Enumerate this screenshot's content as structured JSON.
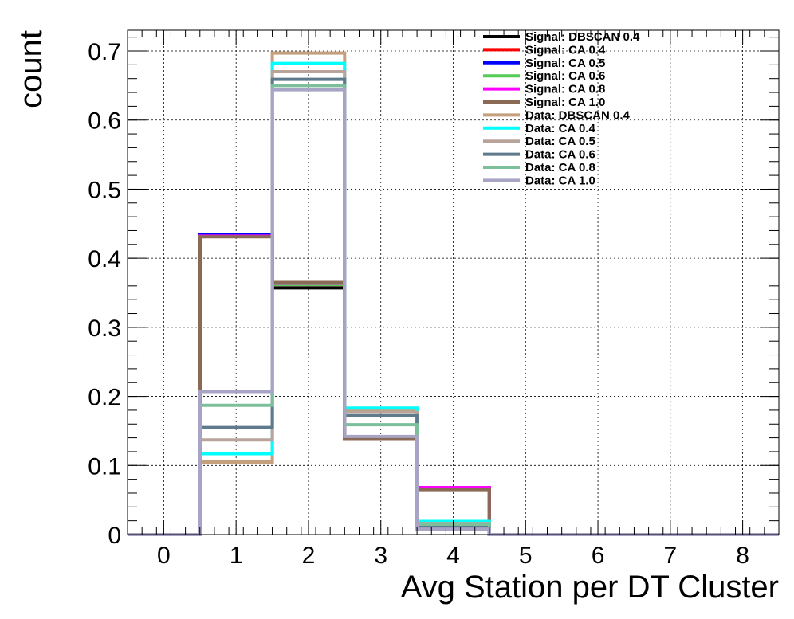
{
  "chart_data": {
    "type": "histogram-step",
    "xlabel": "Avg Station per DT Cluster",
    "ylabel": "count",
    "xlim": [
      -0.5,
      8.5
    ],
    "ylim": [
      0,
      0.73
    ],
    "bin_edges": [
      -0.5,
      0.5,
      1.5,
      2.5,
      3.5,
      4.5,
      5.5,
      6.5,
      7.5,
      8.5
    ],
    "x_ticks": [
      "0",
      "1",
      "2",
      "3",
      "4",
      "5",
      "6",
      "7",
      "8"
    ],
    "x_tick_values": [
      0,
      1,
      2,
      3,
      4,
      5,
      6,
      7,
      8
    ],
    "y_ticks": [
      "0",
      "0.1",
      "0.2",
      "0.3",
      "0.4",
      "0.5",
      "0.6",
      "0.7"
    ],
    "y_tick_values": [
      0,
      0.1,
      0.2,
      0.3,
      0.4,
      0.5,
      0.6,
      0.7
    ],
    "grid": true,
    "legend_position": "top-right",
    "series": [
      {
        "name": "Signal: DBSCAN 0.4",
        "color": "#000000",
        "values": [
          0,
          0.434,
          0.357,
          0.139,
          0.067,
          0,
          0,
          0,
          0
        ]
      },
      {
        "name": "Signal: CA 0.4",
        "color": "#ff0000",
        "values": [
          0,
          0.433,
          0.362,
          0.139,
          0.067,
          0,
          0,
          0,
          0
        ]
      },
      {
        "name": "Signal: CA 0.5",
        "color": "#0000ff",
        "values": [
          0,
          0.434,
          0.363,
          0.139,
          0.068,
          0,
          0,
          0,
          0
        ]
      },
      {
        "name": "Signal: CA 0.6",
        "color": "#55cc55",
        "values": [
          0,
          0.432,
          0.362,
          0.139,
          0.067,
          0,
          0,
          0,
          0
        ]
      },
      {
        "name": "Signal: CA 0.8",
        "color": "#ff00ff",
        "values": [
          0,
          0.432,
          0.364,
          0.139,
          0.068,
          0,
          0,
          0,
          0
        ]
      },
      {
        "name": "Signal: CA 1.0",
        "color": "#8b6a55",
        "values": [
          0,
          0.431,
          0.365,
          0.139,
          0.065,
          0,
          0,
          0,
          0
        ]
      },
      {
        "name": "Data: DBSCAN 0.4",
        "color": "#c4a07c",
        "values": [
          0,
          0.105,
          0.697,
          0.179,
          0.018,
          0,
          0,
          0,
          0
        ]
      },
      {
        "name": "Data: CA 0.4",
        "color": "#00ffff",
        "values": [
          0,
          0.117,
          0.682,
          0.183,
          0.019,
          0,
          0,
          0,
          0
        ]
      },
      {
        "name": "Data: CA 0.5",
        "color": "#b8a49a",
        "values": [
          0,
          0.137,
          0.67,
          0.177,
          0.016,
          0,
          0,
          0,
          0
        ]
      },
      {
        "name": "Data: CA 0.6",
        "color": "#5f7a8c",
        "values": [
          0,
          0.155,
          0.659,
          0.172,
          0.012,
          0,
          0,
          0,
          0
        ]
      },
      {
        "name": "Data: CA 0.8",
        "color": "#7dbf9b",
        "values": [
          0,
          0.187,
          0.65,
          0.159,
          0.015,
          0,
          0,
          0,
          0
        ]
      },
      {
        "name": "Data: CA 1.0",
        "color": "#a8a4c6",
        "values": [
          0,
          0.207,
          0.644,
          0.142,
          0.008,
          0,
          0,
          0,
          0
        ]
      }
    ]
  }
}
